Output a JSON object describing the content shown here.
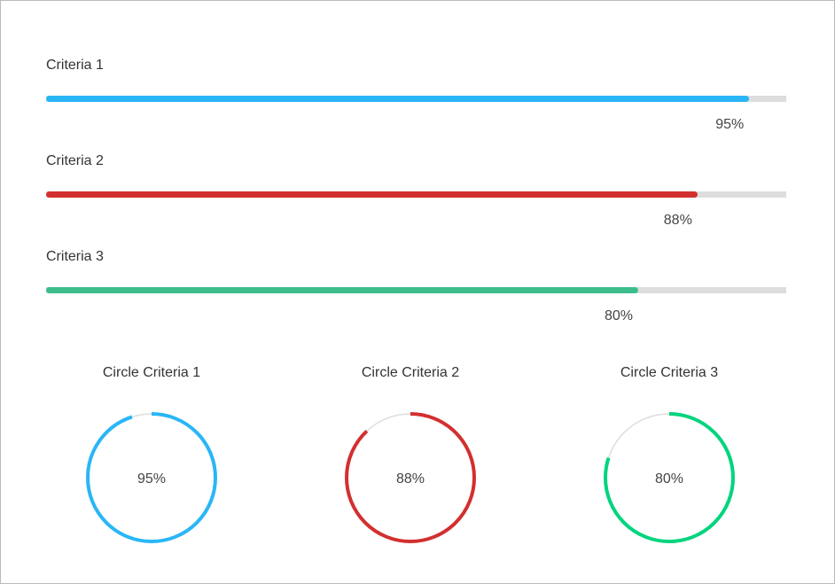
{
  "bars": [
    {
      "label": "Criteria 1",
      "value": 95,
      "value_text": "95%",
      "color": "#29b6f6"
    },
    {
      "label": "Criteria 2",
      "value": 88,
      "value_text": "88%",
      "color": "#d32f2f"
    },
    {
      "label": "Criteria 3",
      "value": 80,
      "value_text": "80%",
      "color": "#3dbd8c"
    }
  ],
  "circles": [
    {
      "title": "Circle Criteria 1",
      "value": 95,
      "value_text": "95%",
      "color": "#29b6f6"
    },
    {
      "title": "Circle Criteria 2",
      "value": 88,
      "value_text": "88%",
      "color": "#d32f2f"
    },
    {
      "title": "Circle Criteria 3",
      "value": 80,
      "value_text": "80%",
      "color": "#00d47e"
    }
  ],
  "track_color": "#dddddd"
}
